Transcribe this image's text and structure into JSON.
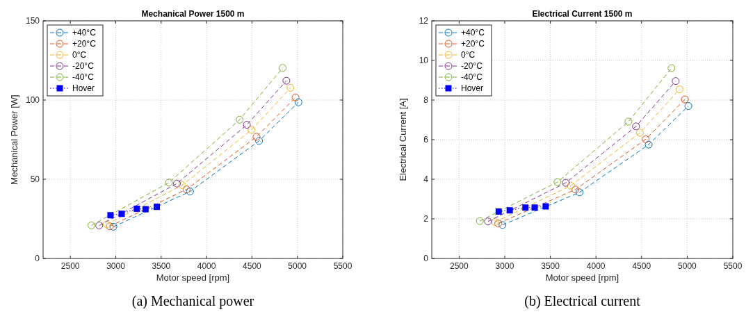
{
  "chart_data": [
    {
      "type": "line",
      "title": "Mechanical Power  1500 m",
      "xlabel": "Motor speed [rpm]",
      "ylabel": "Mechanical Power [W]",
      "xlim": [
        2200,
        5500
      ],
      "xticks": [
        2500,
        3000,
        3500,
        4000,
        4500,
        5000,
        5500
      ],
      "ylim": [
        0,
        150
      ],
      "yticks": [
        0,
        50,
        100,
        150
      ],
      "grid": true,
      "legend": "top left",
      "annotations": [
        "(a) Mechanical power"
      ],
      "series": [
        {
          "name": "+40°C",
          "color": "#0072bd",
          "marker": "circle",
          "line_style": "dashed",
          "x": [
            2974,
            3818,
            4578,
            5012
          ],
          "values": [
            20.0,
            42.3,
            74.2,
            98.6
          ]
        },
        {
          "name": "+20°C",
          "color": "#d95319",
          "marker": "circle",
          "line_style": "dashed",
          "x": [
            2934,
            3780,
            4550,
            4980
          ],
          "values": [
            20.3,
            43.6,
            76.8,
            101.6
          ]
        },
        {
          "name": "0°C",
          "color": "#edb120",
          "marker": "circle",
          "line_style": "dashed",
          "x": [
            2899,
            3732,
            4495,
            4924
          ],
          "values": [
            21.5,
            46.2,
            81.2,
            107.7
          ]
        },
        {
          "name": "-20°C",
          "color": "#7e2f8e",
          "marker": "circle",
          "line_style": "dashed",
          "x": [
            2818,
            3674,
            4444,
            4879
          ],
          "values": [
            20.8,
            47.3,
            84.4,
            112.2
          ]
        },
        {
          "name": "-40°C",
          "color": "#77ac30",
          "marker": "circle",
          "line_style": "dashed",
          "x": [
            2732,
            3586,
            4364,
            4838
          ],
          "values": [
            20.9,
            47.9,
            87.6,
            120.3
          ]
        },
        {
          "name": "Hover",
          "color": "#0000ff",
          "marker": "square",
          "line_style": "dotted",
          "x": [
            2942,
            3065,
            3232,
            3328,
            3452
          ],
          "values": [
            27.3,
            28.2,
            31.4,
            31.1,
            32.6
          ]
        }
      ]
    },
    {
      "type": "line",
      "title": "Electrical Current  1500 m",
      "xlabel": "Motor speed [rpm]",
      "ylabel": "Electrical Current [A]",
      "xlim": [
        2200,
        5500
      ],
      "xticks": [
        2500,
        3000,
        3500,
        4000,
        4500,
        5000,
        5500
      ],
      "ylim": [
        0,
        12
      ],
      "yticks": [
        0,
        2,
        4,
        6,
        8,
        10,
        12
      ],
      "grid": true,
      "legend": "top left",
      "annotations": [
        "(b) Electrical current"
      ],
      "series": [
        {
          "name": "+40°C",
          "color": "#0072bd",
          "marker": "circle",
          "line_style": "dashed",
          "x": [
            2975,
            3821,
            4578,
            5013
          ],
          "values": [
            1.69,
            3.34,
            5.75,
            7.7
          ]
        },
        {
          "name": "+20°C",
          "color": "#d95319",
          "marker": "circle",
          "line_style": "dashed",
          "x": [
            2929,
            3775,
            4545,
            4975
          ],
          "values": [
            1.77,
            3.48,
            6.02,
            8.03
          ]
        },
        {
          "name": "0°C",
          "color": "#edb120",
          "marker": "circle",
          "line_style": "dashed",
          "x": [
            2896,
            3725,
            4482,
            4917
          ],
          "values": [
            1.84,
            3.68,
            6.35,
            8.54
          ]
        },
        {
          "name": "-20°C",
          "color": "#7e2f8e",
          "marker": "circle",
          "line_style": "dashed",
          "x": [
            2816,
            3669,
            4439,
            4874
          ],
          "values": [
            1.87,
            3.82,
            6.67,
            8.96
          ]
        },
        {
          "name": "-40°C",
          "color": "#77ac30",
          "marker": "circle",
          "line_style": "dashed",
          "x": [
            2727,
            3578,
            4356,
            4828
          ],
          "values": [
            1.89,
            3.86,
            6.91,
            9.61
          ]
        },
        {
          "name": "Hover",
          "color": "#0000ff",
          "marker": "square",
          "line_style": "dotted",
          "x": [
            2934,
            3055,
            3227,
            3328,
            3449
          ],
          "values": [
            2.37,
            2.43,
            2.57,
            2.57,
            2.63
          ]
        }
      ]
    }
  ]
}
